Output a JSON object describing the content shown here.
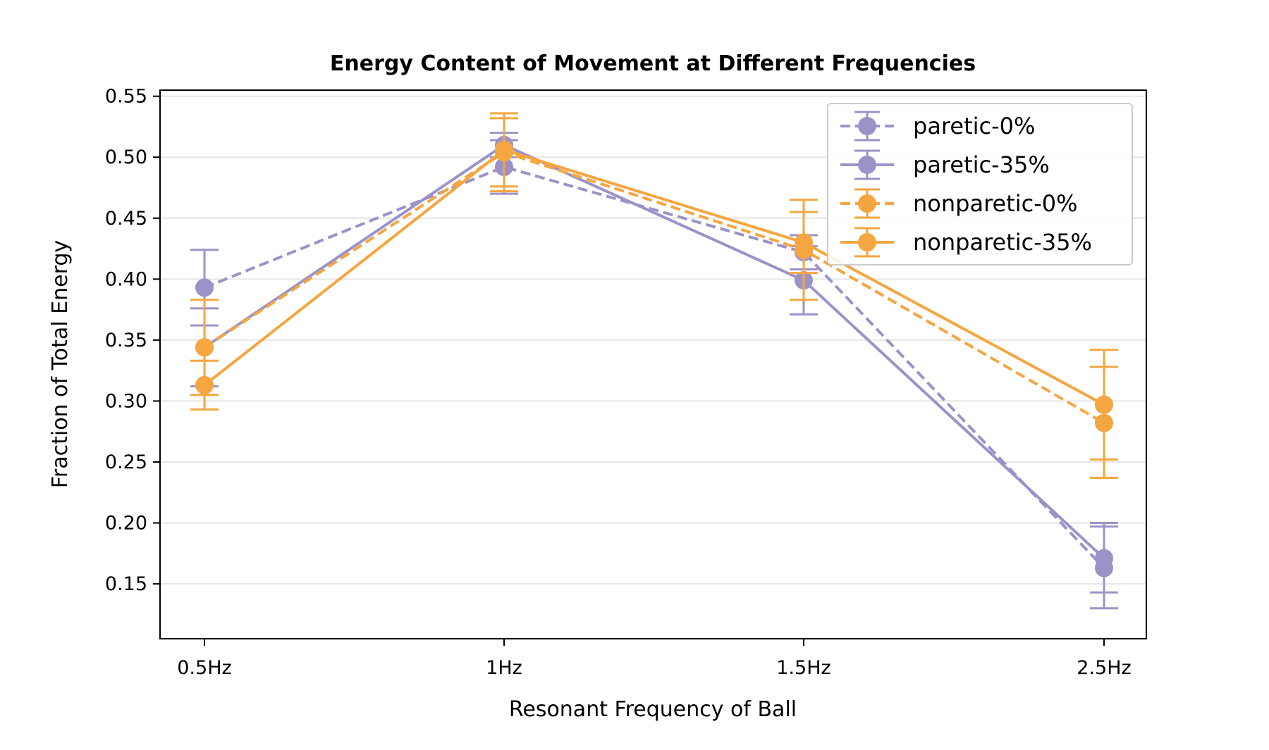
{
  "chart_data": {
    "type": "line",
    "title": "Energy Content of Movement at Different Frequencies",
    "xlabel": "Resonant Frequency of Ball",
    "ylabel": "Fraction of Total Energy",
    "categories": [
      "0.5Hz",
      "1Hz",
      "1.5Hz",
      "2.5Hz"
    ],
    "ylim": [
      0.105,
      0.555
    ],
    "yticks": [
      "0.15",
      "0.20",
      "0.25",
      "0.30",
      "0.35",
      "0.40",
      "0.45",
      "0.50",
      "0.55"
    ],
    "grid": "horizontal",
    "legend_position": "top-right",
    "series": [
      {
        "name": "paretic-0%",
        "color": "#9b93c8",
        "dash": "dashed",
        "values": [
          0.393,
          0.492,
          0.422,
          0.163
        ],
        "err_low": [
          0.362,
          0.47,
          0.408,
          0.13
        ],
        "err_high": [
          0.424,
          0.514,
          0.436,
          0.197
        ]
      },
      {
        "name": "paretic-35%",
        "color": "#9b93c8",
        "dash": "solid",
        "values": [
          0.344,
          0.51,
          0.399,
          0.171
        ],
        "err_low": [
          0.312,
          0.5,
          0.371,
          0.143
        ],
        "err_high": [
          0.376,
          0.52,
          0.427,
          0.2
        ]
      },
      {
        "name": "nonparetic-0%",
        "color": "#f5a640",
        "dash": "dashed",
        "values": [
          0.344,
          0.504,
          0.424,
          0.282
        ],
        "err_low": [
          0.305,
          0.472,
          0.383,
          0.237
        ],
        "err_high": [
          0.383,
          0.536,
          0.465,
          0.328
        ]
      },
      {
        "name": "nonparetic-35%",
        "color": "#f5a640",
        "dash": "solid",
        "values": [
          0.313,
          0.506,
          0.43,
          0.297
        ],
        "err_low": [
          0.293,
          0.476,
          0.405,
          0.252
        ],
        "err_high": [
          0.333,
          0.532,
          0.455,
          0.342
        ]
      }
    ]
  }
}
